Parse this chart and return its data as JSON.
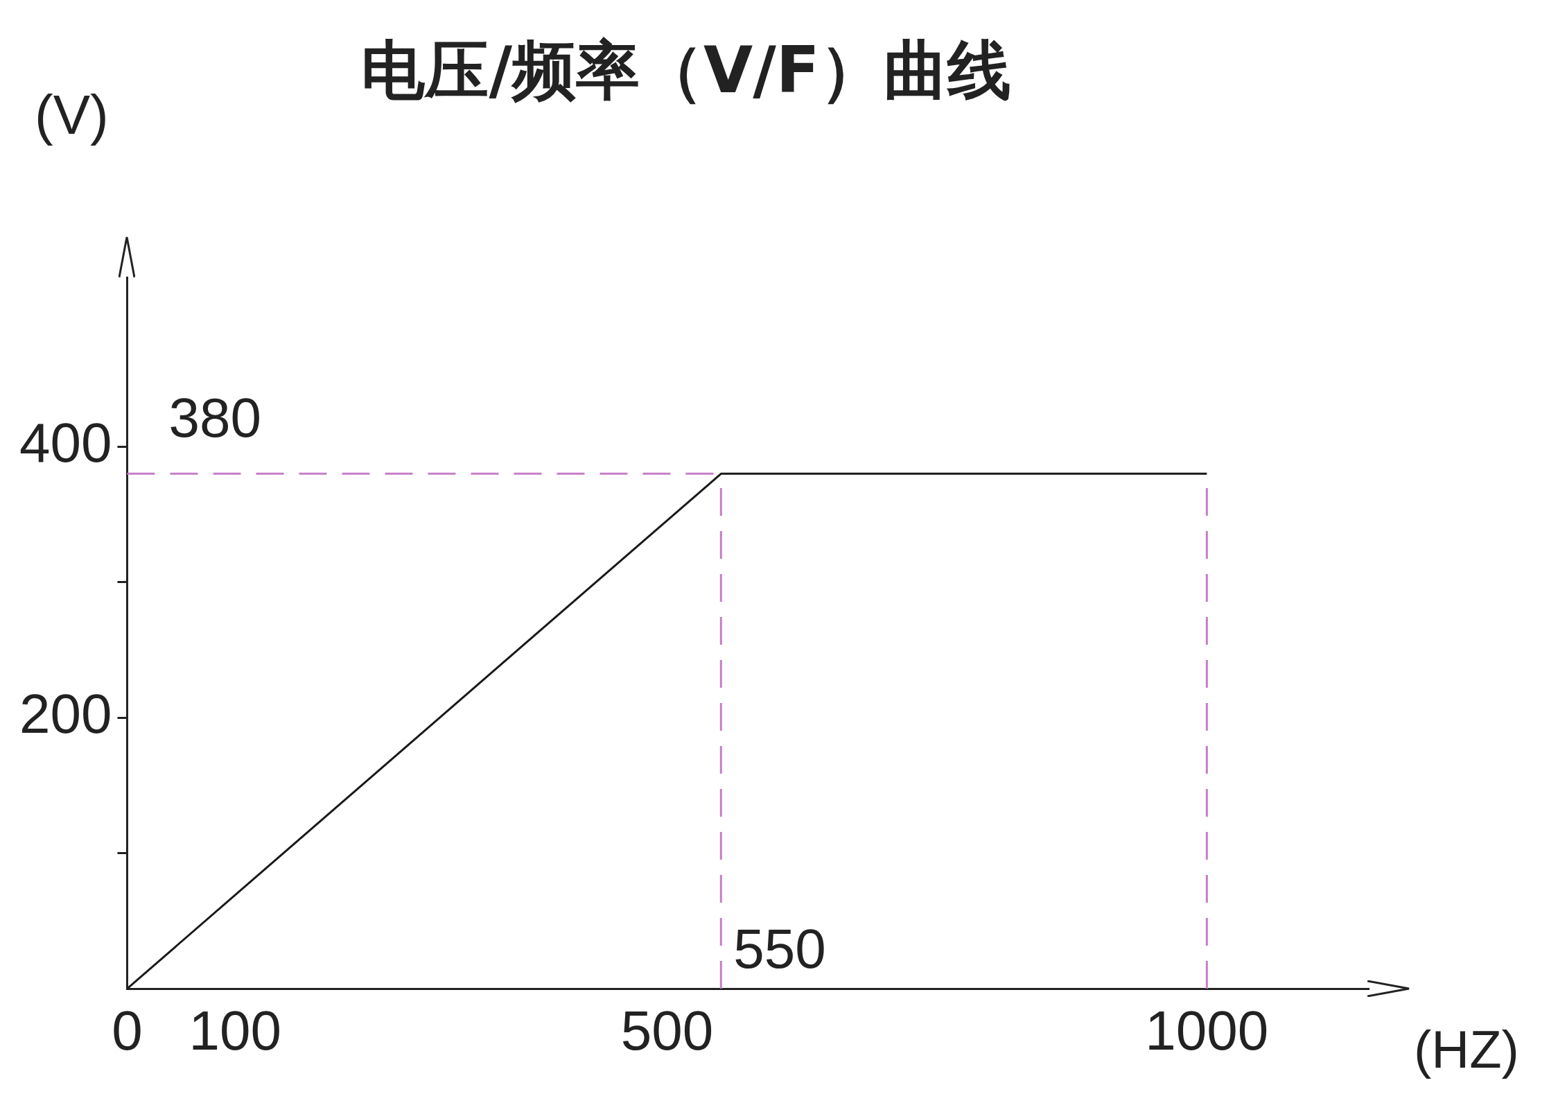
{
  "chart_data": {
    "type": "line",
    "title": "电压/频率（V/F）曲线",
    "xlabel": "(HZ)",
    "ylabel": "(V)",
    "x": [
      0,
      550,
      1000
    ],
    "series": [
      {
        "color": "#1a1a1a",
        "values": [
          0,
          380,
          380
        ]
      }
    ],
    "xlim": [
      0,
      1150
    ],
    "ylim": [
      0,
      525
    ],
    "xticks": [
      0,
      100,
      500,
      1000
    ],
    "yticks": [
      {
        "value": 100,
        "label": null
      },
      200,
      {
        "value": 300,
        "label": null
      },
      400
    ],
    "ref_lines": [
      {
        "axis": "y",
        "value": 380,
        "label": "380",
        "color": "#c77dc7",
        "line_style": "dashed"
      },
      {
        "axis": "x",
        "value": 550,
        "label": "550",
        "color": "#c77dc7",
        "line_style": "dashed"
      },
      {
        "axis": "x",
        "value": 1000,
        "color": "#c77dc7",
        "line_style": "dashed"
      }
    ],
    "grid": false,
    "legend": false,
    "marker": "none",
    "line_style": "solid"
  }
}
